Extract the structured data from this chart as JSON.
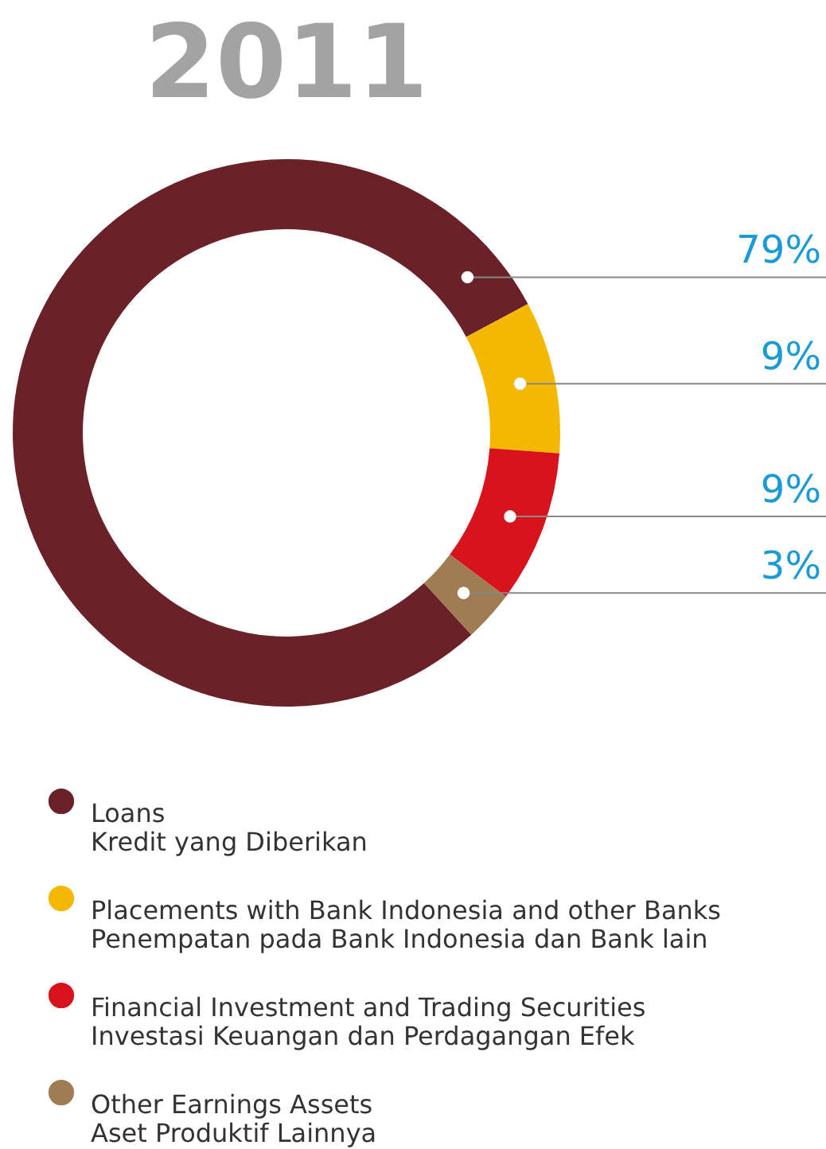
{
  "chart_data": {
    "type": "donut",
    "title": "2011",
    "categories": [
      "Loans\nKredit yang Diberikan",
      "Placements with Bank Indonesia and other Banks\nPenempatan pada Bank Indonesia dan Bank lain",
      "Financial Investment and Trading Securities\nInvestasi Keuangan dan Perdagangan Efek",
      "Other Earnings Assets\nAset Produktif Lainnya"
    ],
    "values": [
      79,
      9,
      9,
      3
    ],
    "colors": [
      "#6b2128",
      "#f5b800",
      "#d7141b",
      "#a07c52"
    ],
    "value_labels": [
      "79%",
      "9%",
      "9%",
      "3%"
    ],
    "legend": "bottom"
  }
}
